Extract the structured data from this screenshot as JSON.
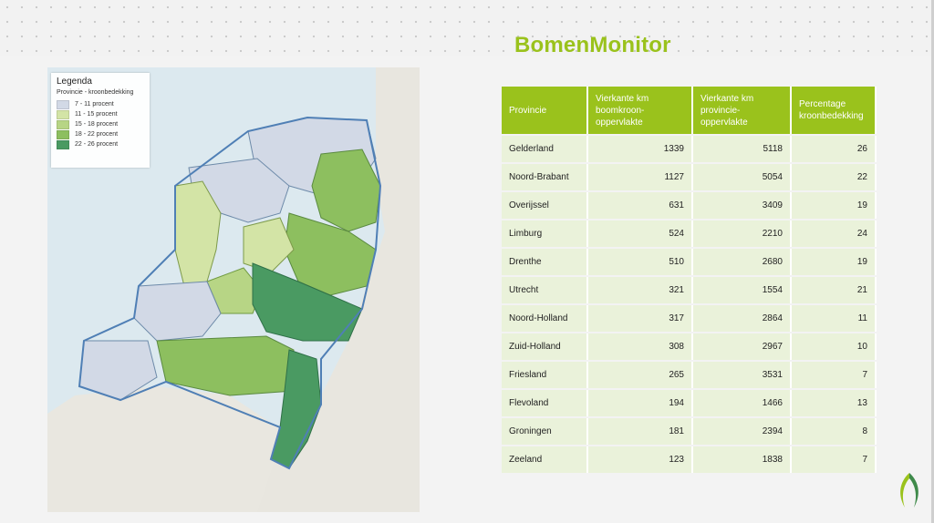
{
  "slide": {
    "title": "BomenMonitor",
    "logo_icon": "leaf-logo-icon"
  },
  "legend": {
    "title": "Legenda",
    "subtitle": "Provincie - kroonbedekking",
    "items": [
      {
        "label": "7 - 11 procent",
        "color": "#d2d9e6"
      },
      {
        "label": "11 - 15 procent",
        "color": "#d3e4a6"
      },
      {
        "label": "15 - 18 procent",
        "color": "#b7d585"
      },
      {
        "label": "18 - 22 procent",
        "color": "#8dbf5f"
      },
      {
        "label": "22 - 26 procent",
        "color": "#4a9a62"
      }
    ]
  },
  "table": {
    "headers": [
      "Provincie",
      "Vierkante km boomkroon-oppervlakte",
      "Vierkante km provincie-oppervlakte",
      "Percentage kroonbedekking"
    ],
    "rows": [
      [
        "Gelderland",
        "1339",
        "5118",
        "26"
      ],
      [
        "Noord-Brabant",
        "1127",
        "5054",
        "22"
      ],
      [
        "Overijssel",
        "631",
        "3409",
        "19"
      ],
      [
        "Limburg",
        "524",
        "2210",
        "24"
      ],
      [
        "Drenthe",
        "510",
        "2680",
        "19"
      ],
      [
        "Utrecht",
        "321",
        "1554",
        "21"
      ],
      [
        "Noord-Holland",
        "317",
        "2864",
        "11"
      ],
      [
        "Zuid-Holland",
        "308",
        "2967",
        "10"
      ],
      [
        "Friesland",
        "265",
        "3531",
        "7"
      ],
      [
        "Flevoland",
        "194",
        "1466",
        "13"
      ],
      [
        "Groningen",
        "181",
        "2394",
        "8"
      ],
      [
        "Zeeland",
        "123",
        "1838",
        "7"
      ]
    ]
  },
  "colors": {
    "accent": "#9ac21c",
    "row_bg": "#eaf2da"
  }
}
